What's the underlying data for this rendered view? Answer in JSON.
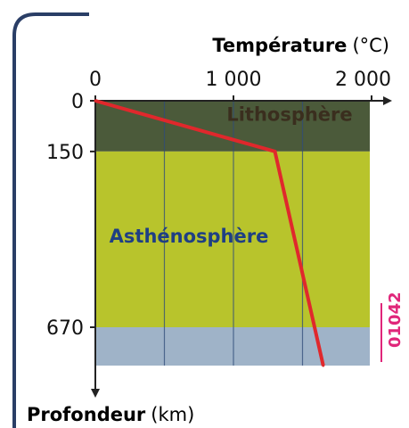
{
  "chart_data": {
    "type": "line",
    "x_title_bold": "Température",
    "x_title_unit": "(°C)",
    "y_title_bold": "Profondeur",
    "y_title_unit": "(km)",
    "xlim": [
      0,
      2000
    ],
    "x_ticks": [
      0,
      1000,
      2000
    ],
    "x_tick_labels": [
      "0",
      "1 000",
      "2 000"
    ],
    "y_ticks": [
      0,
      150,
      670
    ],
    "y_tick_labels": [
      "0",
      "150",
      "670"
    ],
    "layers": [
      {
        "name": "Lithosphère",
        "from": 0,
        "to": 150,
        "color": "#4b5a3a"
      },
      {
        "name": "Asthénosphère",
        "from": 150,
        "to": 670,
        "color": "#b8c42c"
      },
      {
        "name": "",
        "from": 670,
        "to": 800,
        "color": "#9fb3c8"
      }
    ],
    "series": [
      {
        "points": [
          [
            0,
            0
          ],
          [
            1300,
            150
          ],
          [
            1650,
            800
          ]
        ],
        "color": "#e0282c"
      }
    ],
    "grid": "vertical",
    "code": "01042",
    "code_color": "#e0267a"
  }
}
